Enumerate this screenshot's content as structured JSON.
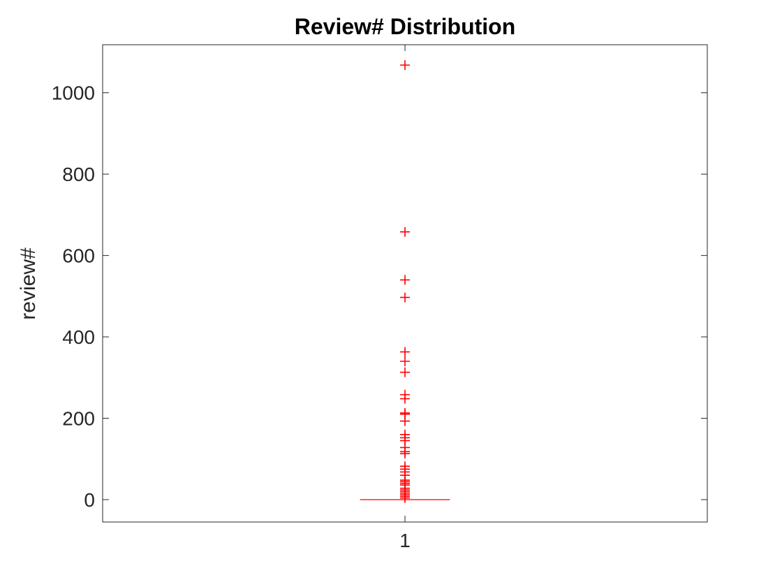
{
  "chart_data": {
    "type": "box",
    "title": "Review# Distribution",
    "xlabel": "",
    "ylabel": "review#",
    "categories": [
      "1"
    ],
    "ylim": [
      -55,
      1118
    ],
    "yticks": [
      0,
      200,
      400,
      600,
      800,
      1000
    ],
    "ytick_labels": [
      "0",
      "200",
      "400",
      "600",
      "800",
      "1000"
    ],
    "grid": false,
    "colors": {
      "box": "#ff0000",
      "outlier": "#ff0000",
      "axis": "#262626",
      "text": "#262626"
    },
    "box": {
      "min": 0,
      "q1": 0,
      "median": 0,
      "q3": 0,
      "max": 0,
      "outliers": [
        1068,
        658,
        540,
        497,
        363,
        340,
        313,
        258,
        248,
        213,
        210,
        193,
        160,
        152,
        145,
        128,
        118,
        113,
        82,
        75,
        68,
        60,
        48,
        44,
        40,
        36,
        28,
        24,
        20,
        16,
        12,
        8,
        4
      ]
    }
  }
}
